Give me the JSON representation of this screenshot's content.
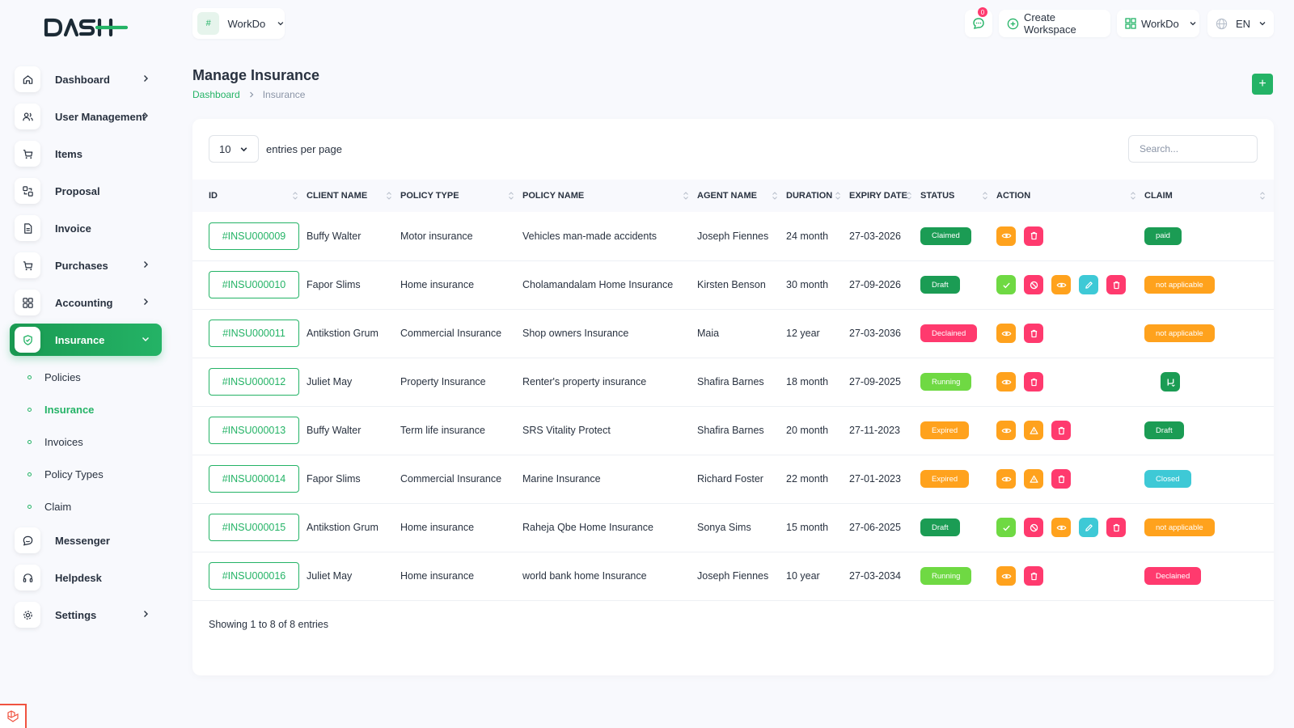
{
  "brand": "DASH",
  "workspace": {
    "name": "WorkDo",
    "img_alt": "#"
  },
  "topbar": {
    "messages_count": "0",
    "create_workspace": "Create Workspace",
    "workspace_menu": "WorkDo",
    "language": "EN"
  },
  "sidebar": {
    "items": [
      {
        "label": "Dashboard",
        "icon": "home-icon",
        "chevron": true
      },
      {
        "label": "User Management",
        "icon": "users-icon",
        "chevron": true
      },
      {
        "label": "Items",
        "icon": "cart-icon",
        "chevron": false
      },
      {
        "label": "Proposal",
        "icon": "proposal-icon",
        "chevron": false
      },
      {
        "label": "Invoice",
        "icon": "file-icon",
        "chevron": false
      },
      {
        "label": "Purchases",
        "icon": "cart-icon",
        "chevron": true
      },
      {
        "label": "Accounting",
        "icon": "grid-icon",
        "chevron": true
      },
      {
        "label": "Insurance",
        "icon": "shield-icon",
        "chevron": true,
        "active": true
      }
    ],
    "submenu": [
      "Policies",
      "Insurance",
      "Invoices",
      "Policy Types",
      "Claim"
    ],
    "submenu_active": "Insurance",
    "after": [
      {
        "label": "Messenger",
        "icon": "chat-icon",
        "chevron": false
      },
      {
        "label": "Helpdesk",
        "icon": "headset-icon",
        "chevron": false
      },
      {
        "label": "Settings",
        "icon": "gear-icon",
        "chevron": true
      }
    ]
  },
  "header": {
    "title": "Manage Insurance",
    "breadcrumb_home": "Dashboard",
    "breadcrumb_current": "Insurance",
    "add_label": "+"
  },
  "table_controls": {
    "entries_value": "10",
    "entries_label": "entries per page",
    "search_placeholder": "Search..."
  },
  "columns": [
    "ID",
    "CLIENT NAME",
    "POLICY TYPE",
    "POLICY NAME",
    "AGENT NAME",
    "DURATION",
    "EXPIRY DATE",
    "STATUS",
    "ACTION",
    "CLAIM"
  ],
  "rows": [
    {
      "id": "#INSU000009",
      "client": "Buffy Walter",
      "policy_type": "Motor insurance",
      "policy_name": "Vehicles man-made accidents",
      "agent": "Joseph Fiennes",
      "duration": "24 month",
      "expiry": "27-03-2026",
      "status": "Claimed",
      "status_class": "s-claimed",
      "actions": [
        "view",
        "delete"
      ],
      "claim": "paid",
      "claim_class": "s-paid"
    },
    {
      "id": "#INSU000010",
      "client": "Fapor Slims",
      "policy_type": "Home insurance",
      "policy_name": "Cholamandalam Home Insurance",
      "agent": "Kirsten Benson",
      "duration": "30 month",
      "expiry": "27-09-2026",
      "status": "Draft",
      "status_class": "s-draft",
      "actions": [
        "approve",
        "reject",
        "view",
        "edit",
        "delete"
      ],
      "claim": "not applicable",
      "claim_class": "s-na"
    },
    {
      "id": "#INSU000011",
      "client": "Antikstion Grum",
      "policy_type": "Commercial Insurance",
      "policy_name": "Shop owners Insurance",
      "agent": "Maia",
      "duration": "12 year",
      "expiry": "27-03-2036",
      "status": "Declained",
      "status_class": "s-declained",
      "actions": [
        "view",
        "delete"
      ],
      "claim": "not applicable",
      "claim_class": "s-na"
    },
    {
      "id": "#INSU000012",
      "client": "Juliet May",
      "policy_type": "Property Insurance",
      "policy_name": "Renter's property insurance",
      "agent": "Shafira Barnes",
      "duration": "18 month",
      "expiry": "27-09-2025",
      "status": "Running",
      "status_class": "s-running",
      "actions": [
        "view",
        "delete"
      ],
      "claim": "",
      "claim_class": "claim-btn"
    },
    {
      "id": "#INSU000013",
      "client": "Buffy Walter",
      "policy_type": "Term life insurance",
      "policy_name": "SRS Vitality Protect",
      "agent": "Shafira Barnes",
      "duration": "20 month",
      "expiry": "27-11-2023",
      "status": "Expired",
      "status_class": "s-expired",
      "actions": [
        "view",
        "warn",
        "delete"
      ],
      "claim": "Draft",
      "claim_class": "s-draft"
    },
    {
      "id": "#INSU000014",
      "client": "Fapor Slims",
      "policy_type": "Commercial Insurance",
      "policy_name": "Marine Insurance",
      "agent": "Richard Foster",
      "duration": "22 month",
      "expiry": "27-01-2023",
      "status": "Expired",
      "status_class": "s-expired",
      "actions": [
        "view",
        "warn",
        "delete"
      ],
      "claim": "Closed",
      "claim_class": "s-closed"
    },
    {
      "id": "#INSU000015",
      "client": "Antikstion Grum",
      "policy_type": "Home insurance",
      "policy_name": "Raheja Qbe Home Insurance",
      "agent": "Sonya Sims",
      "duration": "15 month",
      "expiry": "27-06-2025",
      "status": "Draft",
      "status_class": "s-draft",
      "actions": [
        "approve",
        "reject",
        "view",
        "edit",
        "delete"
      ],
      "claim": "not applicable",
      "claim_class": "s-na"
    },
    {
      "id": "#INSU000016",
      "client": "Juliet May",
      "policy_type": "Home insurance",
      "policy_name": "world bank home Insurance",
      "agent": "Joseph Fiennes",
      "duration": "10 year",
      "expiry": "27-03-2034",
      "status": "Running",
      "status_class": "s-running",
      "actions": [
        "view",
        "delete"
      ],
      "claim": "Declained",
      "claim_class": "s-declained"
    }
  ],
  "footer": {
    "showing": "Showing 1 to 8 of 8 entries"
  },
  "colors": {
    "primary": "#24b366",
    "danger": "#ff3a6e",
    "warning": "#ffa21d",
    "info": "#3ec9d6",
    "success": "#6fd943"
  }
}
